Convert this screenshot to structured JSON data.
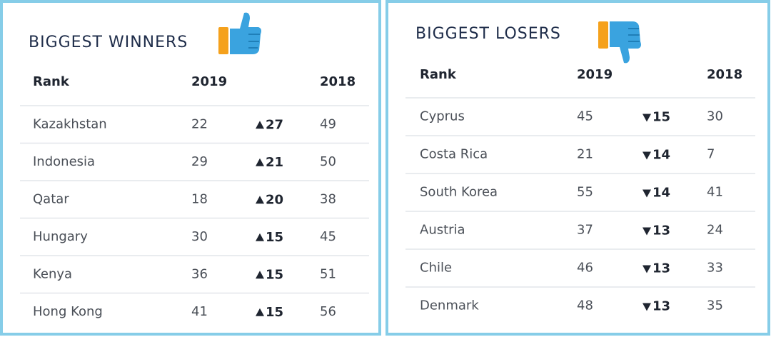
{
  "winners": {
    "title": "BIGGEST WINNERS",
    "header": {
      "rank": "Rank",
      "col_2019": "2019",
      "col_2018": "2018"
    },
    "rows": [
      {
        "country": "Kazakhstan",
        "rank_2019": 22,
        "change": 27,
        "rank_2018": 49
      },
      {
        "country": "Indonesia",
        "rank_2019": 29,
        "change": 21,
        "rank_2018": 50
      },
      {
        "country": "Qatar",
        "rank_2019": 18,
        "change": 20,
        "rank_2018": 38
      },
      {
        "country": "Hungary",
        "rank_2019": 30,
        "change": 15,
        "rank_2018": 45
      },
      {
        "country": "Kenya",
        "rank_2019": 36,
        "change": 15,
        "rank_2018": 51
      },
      {
        "country": "Hong Kong",
        "rank_2019": 41,
        "change": 15,
        "rank_2018": 56
      }
    ]
  },
  "losers": {
    "title": "BIGGEST LOSERS",
    "header": {
      "rank": "Rank",
      "col_2019": "2019",
      "col_2018": "2018"
    },
    "rows": [
      {
        "country": "Cyprus",
        "rank_2019": 45,
        "change": 15,
        "rank_2018": 30
      },
      {
        "country": "Costa Rica",
        "rank_2019": 21,
        "change": 14,
        "rank_2018": 7
      },
      {
        "country": "South Korea",
        "rank_2019": 55,
        "change": 14,
        "rank_2018": 41
      },
      {
        "country": "Austria",
        "rank_2019": 37,
        "change": 13,
        "rank_2018": 24
      },
      {
        "country": "Chile",
        "rank_2019": 46,
        "change": 13,
        "rank_2018": 33
      },
      {
        "country": "Denmark",
        "rank_2019": 48,
        "change": 13,
        "rank_2018": 35
      }
    ]
  }
}
